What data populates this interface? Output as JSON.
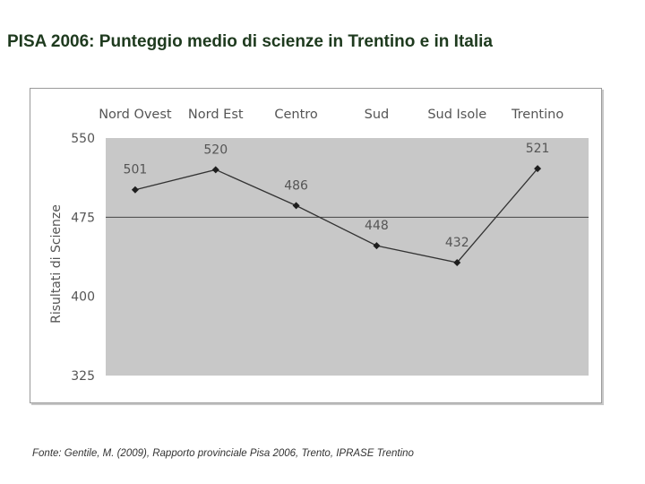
{
  "slide": {
    "title": "PISA 2006: Punteggio medio di scienze in Trentino e in Italia",
    "source": "Fonte: Gentile, M. (2009), Rapporto provinciale Pisa 2006, Trento, IPRASE Trentino"
  },
  "colors": {
    "plot_background": "#c8c8c8",
    "line": "#333333",
    "marker": "#1e1e1e",
    "reference_line": "#444444"
  },
  "chart_data": {
    "type": "line",
    "categories": [
      "Nord Ovest",
      "Nord Est",
      "Centro",
      "Sud",
      "Sud Isole",
      "Trentino"
    ],
    "series": [
      {
        "values": [
          501,
          520,
          486,
          448,
          432,
          521
        ]
      }
    ],
    "data_labels": [
      "501",
      "520",
      "486",
      "448",
      "432",
      "521"
    ],
    "ylabel": "Risultati di Scienze",
    "ylim": [
      325,
      550
    ],
    "yticks": [
      550,
      475,
      400,
      325
    ],
    "reference_line": 475,
    "category_axis_position": "top",
    "marker": "diamond",
    "grid": false
  }
}
